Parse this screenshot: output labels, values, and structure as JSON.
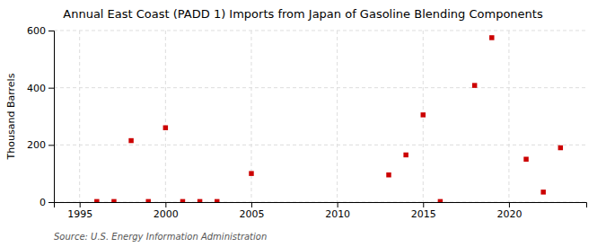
{
  "chart_data": {
    "type": "scatter",
    "title": "Annual East Coast (PADD 1) Imports from Japan of Gasoline Blending Components",
    "ylabel": "Thousand Barrels",
    "source": "Source: U.S. Energy Information Administration",
    "x": [
      1996,
      1997,
      1998,
      1999,
      2000,
      2001,
      2002,
      2003,
      2005,
      2013,
      2014,
      2015,
      2016,
      2018,
      2019,
      2021,
      2022,
      2023
    ],
    "values": [
      2,
      2,
      215,
      2,
      260,
      2,
      2,
      2,
      100,
      95,
      165,
      305,
      2,
      408,
      575,
      150,
      35,
      190
    ],
    "color": "#cc0000",
    "marker": "square",
    "xlim": [
      1993.5,
      2024.5
    ],
    "ylim": [
      0,
      600
    ],
    "xticks": [
      1995,
      2000,
      2005,
      2010,
      2015,
      2020
    ],
    "yticks": [
      0,
      200,
      400,
      600
    ],
    "grid": true
  }
}
